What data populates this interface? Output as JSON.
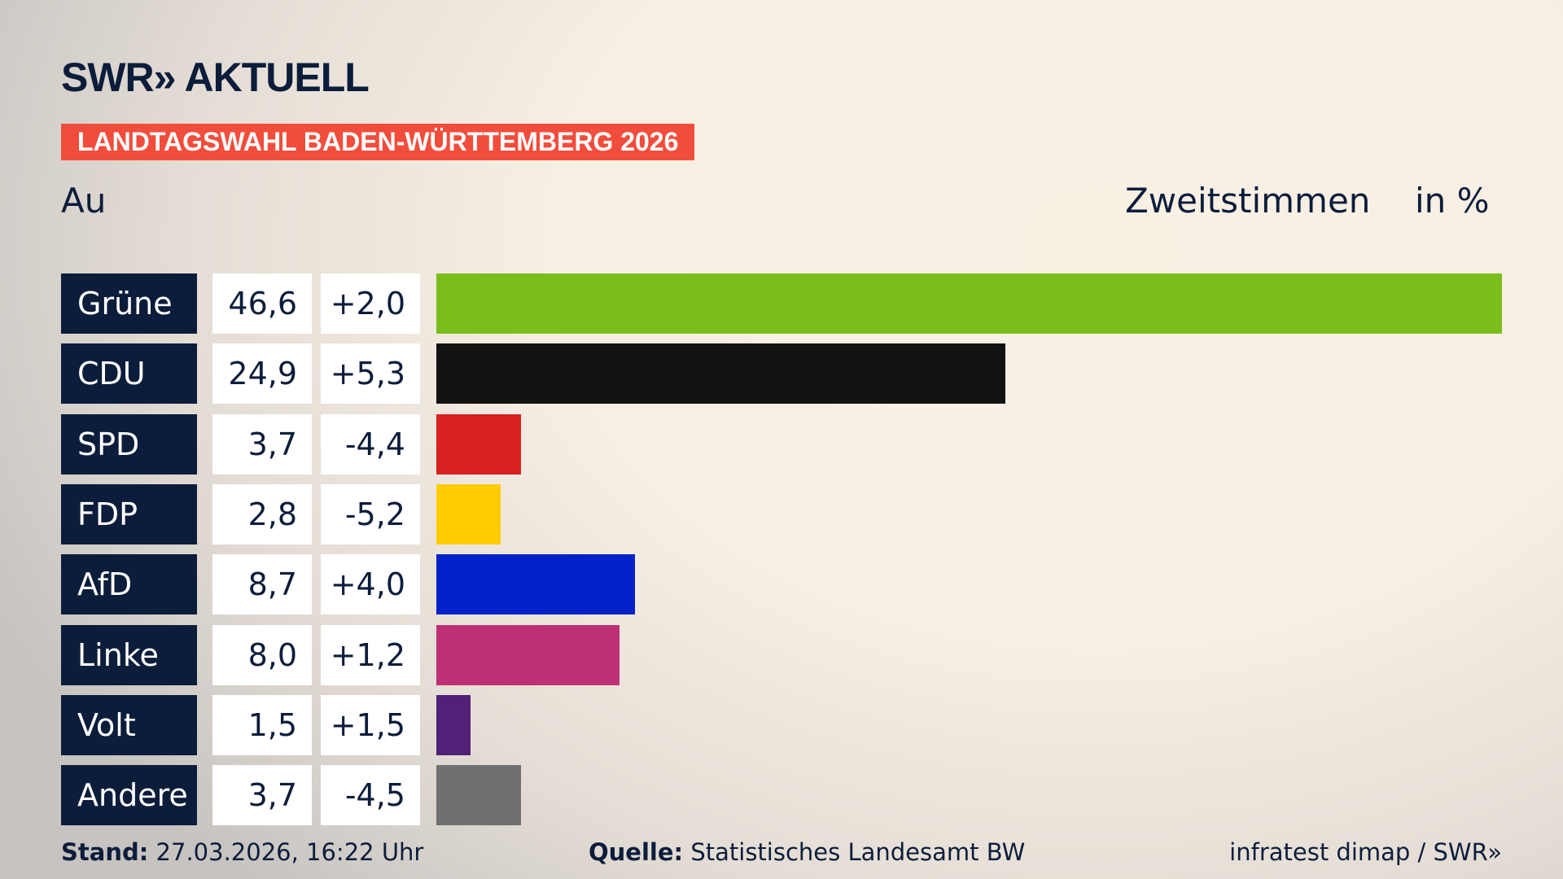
{
  "header": {
    "logo": "SWR» AKTUELL",
    "banner": "LANDTAGSWAHL BADEN-WÜRTTEMBERG 2026",
    "region": "Au",
    "measure": "Zweitstimmen",
    "unit": "in %"
  },
  "chart_data": {
    "type": "bar",
    "orientation": "horizontal",
    "categories": [
      "Grüne",
      "CDU",
      "SPD",
      "FDP",
      "AfD",
      "Linke",
      "Volt",
      "Andere"
    ],
    "values": [
      46.6,
      24.9,
      3.7,
      2.8,
      8.7,
      8.0,
      1.5,
      3.7
    ],
    "value_labels": [
      "46,6",
      "24,9",
      "3,7",
      "2,8",
      "8,7",
      "8,0",
      "1,5",
      "3,7"
    ],
    "diff_labels": [
      "+2,0",
      "+5,3",
      "-4,4",
      "-5,2",
      "+4,0",
      "+1,2",
      "+1,5",
      "-4,5"
    ],
    "colors": [
      "#7abe1e",
      "#121212",
      "#d8201e",
      "#ffcc00",
      "#0022c8",
      "#bd3075",
      "#512077",
      "#707070"
    ],
    "xlim": [
      0,
      46.6
    ],
    "grid": false
  },
  "footer": {
    "stand_label": "Stand:",
    "stand": "27.03.2026, 16:22 Uhr",
    "source_label": "Quelle:",
    "source": "Statistisches Landesamt BW",
    "credit": "infratest dimap / SWR»"
  }
}
